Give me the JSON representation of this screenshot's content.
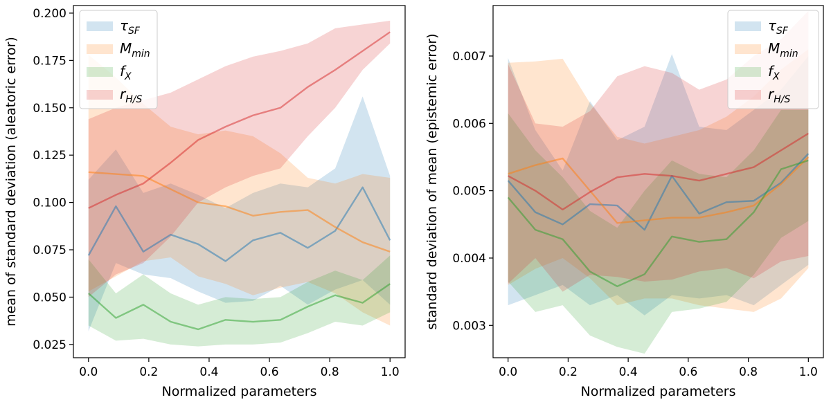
{
  "chart_data": [
    {
      "type": "line",
      "title": "",
      "xlabel": "Normalized parameters",
      "ylabel": "mean of standard deviation (aleatoric error)",
      "xlim": [
        -0.05,
        1.05
      ],
      "ylim": [
        0.018,
        0.204
      ],
      "xticks": [
        0.0,
        0.2,
        0.4,
        0.6,
        0.8,
        1.0
      ],
      "xtick_labels": [
        "0.0",
        "0.2",
        "0.4",
        "0.6",
        "0.8",
        "1.0"
      ],
      "yticks": [
        0.025,
        0.05,
        0.075,
        0.1,
        0.125,
        0.15,
        0.175,
        0.2
      ],
      "ytick_labels": [
        "0.025",
        "0.050",
        "0.075",
        "0.100",
        "0.125",
        "0.150",
        "0.175",
        "0.200"
      ],
      "legend_position": "top-left",
      "x": [
        0.0,
        0.0909,
        0.1818,
        0.2727,
        0.3636,
        0.4545,
        0.5455,
        0.6364,
        0.7273,
        0.8182,
        0.9091,
        1.0
      ],
      "series": [
        {
          "name": "τ",
          "sub": "SF",
          "color": "#1f77b4",
          "values": [
            0.072,
            0.098,
            0.074,
            0.083,
            0.078,
            0.069,
            0.08,
            0.084,
            0.076,
            0.085,
            0.108,
            0.08
          ],
          "upper": [
            0.112,
            0.128,
            0.105,
            0.11,
            0.104,
            0.097,
            0.105,
            0.11,
            0.108,
            0.118,
            0.156,
            0.114
          ],
          "lower": [
            0.032,
            0.068,
            0.062,
            0.06,
            0.053,
            0.047,
            0.048,
            0.056,
            0.046,
            0.054,
            0.059,
            0.046
          ]
        },
        {
          "name": "M",
          "sub": "min",
          "color": "#ff7f0e",
          "values": [
            0.116,
            0.115,
            0.114,
            0.107,
            0.1,
            0.098,
            0.093,
            0.095,
            0.096,
            0.087,
            0.079,
            0.074
          ],
          "upper": [
            0.178,
            0.166,
            0.152,
            0.14,
            0.136,
            0.138,
            0.135,
            0.126,
            0.113,
            0.11,
            0.115,
            0.113
          ],
          "lower": [
            0.053,
            0.061,
            0.069,
            0.071,
            0.061,
            0.057,
            0.051,
            0.055,
            0.058,
            0.052,
            0.042,
            0.035
          ]
        },
        {
          "name": "f",
          "sub": "X",
          "color": "#2ca02c",
          "values": [
            0.052,
            0.039,
            0.046,
            0.037,
            0.033,
            0.038,
            0.037,
            0.038,
            0.045,
            0.051,
            0.047,
            0.057
          ],
          "upper": [
            0.07,
            0.052,
            0.062,
            0.052,
            0.046,
            0.05,
            0.049,
            0.05,
            0.058,
            0.064,
            0.059,
            0.072
          ],
          "lower": [
            0.035,
            0.027,
            0.028,
            0.025,
            0.024,
            0.025,
            0.025,
            0.026,
            0.031,
            0.037,
            0.035,
            0.042
          ]
        },
        {
          "name": "r",
          "sub": "H/S",
          "color": "#d62728",
          "values": [
            0.097,
            0.104,
            0.11,
            0.121,
            0.133,
            0.14,
            0.146,
            0.15,
            0.161,
            0.17,
            0.18,
            0.19
          ],
          "upper": [
            0.144,
            0.15,
            0.154,
            0.158,
            0.165,
            0.172,
            0.177,
            0.18,
            0.184,
            0.192,
            0.194,
            0.196
          ],
          "lower": [
            0.05,
            0.062,
            0.068,
            0.082,
            0.1,
            0.108,
            0.114,
            0.118,
            0.135,
            0.15,
            0.17,
            0.184
          ]
        }
      ]
    },
    {
      "type": "line",
      "title": "",
      "xlabel": "Normalized parameters",
      "ylabel": "standard deviation of mean (epistemic error)",
      "xlim": [
        -0.05,
        1.05
      ],
      "ylim": [
        0.00252,
        0.00775
      ],
      "xticks": [
        0.0,
        0.2,
        0.4,
        0.6,
        0.8,
        1.0
      ],
      "xtick_labels": [
        "0.0",
        "0.2",
        "0.4",
        "0.6",
        "0.8",
        "1.0"
      ],
      "yticks": [
        0.003,
        0.004,
        0.005,
        0.006,
        0.007
      ],
      "ytick_labels": [
        "0.003",
        "0.004",
        "0.005",
        "0.006",
        "0.007"
      ],
      "legend_position": "top-right",
      "x": [
        0.0,
        0.0909,
        0.1818,
        0.2727,
        0.3636,
        0.4545,
        0.5455,
        0.6364,
        0.7273,
        0.8182,
        0.9091,
        1.0
      ],
      "series": [
        {
          "name": "τ",
          "sub": "SF",
          "color": "#1f77b4",
          "values": [
            0.00515,
            0.00468,
            0.0045,
            0.0048,
            0.00478,
            0.00442,
            0.00522,
            0.00466,
            0.00483,
            0.00485,
            0.00512,
            0.00555
          ],
          "upper": [
            0.00697,
            0.0059,
            0.0053,
            0.00633,
            0.00575,
            0.00595,
            0.00703,
            0.00595,
            0.0059,
            0.0062,
            0.0065,
            0.007
          ],
          "lower": [
            0.0033,
            0.00345,
            0.0036,
            0.0033,
            0.00345,
            0.00315,
            0.00345,
            0.0034,
            0.00345,
            0.0033,
            0.0036,
            0.0039
          ]
        },
        {
          "name": "M",
          "sub": "min",
          "color": "#ff7f0e",
          "values": [
            0.00525,
            0.00538,
            0.00548,
            0.005,
            0.00452,
            0.00456,
            0.0046,
            0.0046,
            0.00468,
            0.00478,
            0.0051,
            0.0055
          ],
          "upper": [
            0.0069,
            0.00692,
            0.00696,
            0.0063,
            0.0058,
            0.0057,
            0.0058,
            0.0059,
            0.0061,
            0.0064,
            0.0068,
            0.0071
          ],
          "lower": [
            0.0036,
            0.00384,
            0.004,
            0.0037,
            0.0033,
            0.0034,
            0.0034,
            0.0033,
            0.00325,
            0.0032,
            0.0034,
            0.00385
          ]
        },
        {
          "name": "f",
          "sub": "X",
          "color": "#2ca02c",
          "values": [
            0.0049,
            0.00442,
            0.00428,
            0.0038,
            0.00358,
            0.00376,
            0.00432,
            0.00424,
            0.00428,
            0.00468,
            0.00532,
            0.00545
          ],
          "upper": [
            0.00615,
            0.0056,
            0.0052,
            0.0047,
            0.00445,
            0.005,
            0.00545,
            0.00525,
            0.0052,
            0.0056,
            0.0062,
            0.0062
          ],
          "lower": [
            0.00365,
            0.0032,
            0.0033,
            0.00285,
            0.00268,
            0.00258,
            0.0032,
            0.00325,
            0.00335,
            0.00375,
            0.0043,
            0.00455
          ]
        },
        {
          "name": "r",
          "sub": "H/S",
          "color": "#d62728",
          "values": [
            0.00522,
            0.005,
            0.00472,
            0.00498,
            0.0052,
            0.00525,
            0.00522,
            0.00515,
            0.00525,
            0.00535,
            0.0056,
            0.00585
          ],
          "upper": [
            0.00688,
            0.006,
            0.00595,
            0.00618,
            0.0067,
            0.00685,
            0.00675,
            0.0065,
            0.00665,
            0.007,
            0.00725,
            0.00767
          ],
          "lower": [
            0.00362,
            0.004,
            0.0035,
            0.00375,
            0.00372,
            0.00365,
            0.00368,
            0.0038,
            0.00385,
            0.0037,
            0.00395,
            0.00403
          ]
        }
      ]
    }
  ]
}
